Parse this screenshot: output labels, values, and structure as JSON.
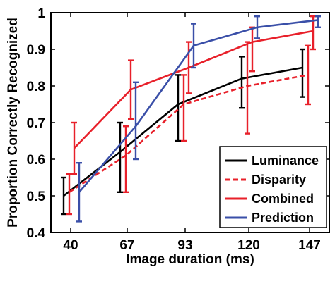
{
  "chart_data": {
    "type": "line",
    "title": "",
    "xlabel": "Image duration (ms)",
    "ylabel": "Proportion Correctly Recognized",
    "categories": [
      "40",
      "67",
      "93",
      "120",
      "147"
    ],
    "ylim": [
      0.4,
      1.0
    ],
    "yticks": [
      "0.4",
      "0.5",
      "0.6",
      "0.7",
      "0.8",
      "0.9",
      "1"
    ],
    "grid": false,
    "legend_position": "bottom-right",
    "series": [
      {
        "name": "Luminance",
        "color": "#000000",
        "dashed": false,
        "values": [
          0.5,
          0.62,
          0.75,
          0.82,
          0.85
        ],
        "err_low": [
          0.45,
          0.51,
          0.65,
          0.74,
          0.77
        ],
        "err_high": [
          0.55,
          0.7,
          0.83,
          0.88,
          0.9
        ]
      },
      {
        "name": "Disparity",
        "color": "#e8202a",
        "dashed": true,
        "values": [
          0.51,
          0.61,
          0.75,
          0.8,
          0.83
        ],
        "err_low": [
          0.45,
          0.51,
          0.65,
          0.67,
          0.75
        ],
        "err_high": [
          0.56,
          0.69,
          0.83,
          0.92,
          0.91
        ]
      },
      {
        "name": "Combined",
        "color": "#e8202a",
        "dashed": false,
        "values": [
          0.63,
          0.79,
          0.85,
          0.92,
          0.95
        ],
        "err_low": [
          0.56,
          0.71,
          0.78,
          0.84,
          0.9
        ],
        "err_high": [
          0.7,
          0.87,
          0.92,
          0.96,
          0.99
        ]
      },
      {
        "name": "Prediction",
        "color": "#3a4fa8",
        "dashed": false,
        "values": [
          0.51,
          0.69,
          0.91,
          0.96,
          0.98
        ],
        "err_low": [
          0.43,
          0.6,
          0.85,
          0.93,
          0.96
        ],
        "err_high": [
          0.59,
          0.81,
          0.97,
          0.99,
          0.99
        ]
      }
    ]
  }
}
